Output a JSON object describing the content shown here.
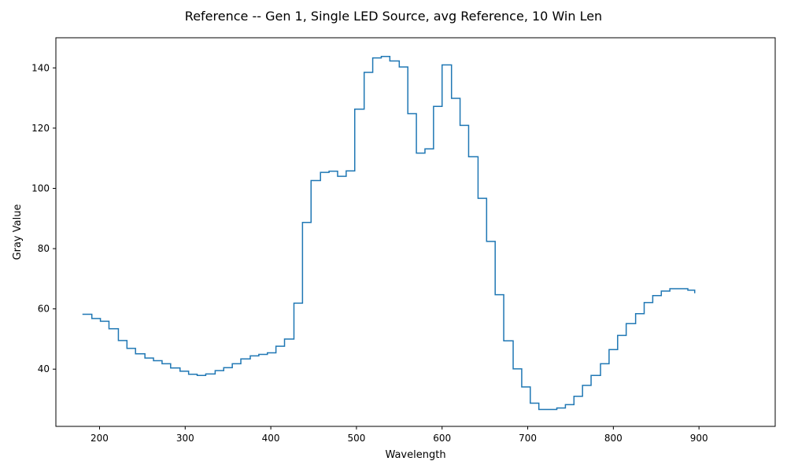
{
  "chart_data": {
    "type": "line",
    "step": "post",
    "title": "Reference -- Gen 1, Single LED Source, avg Reference, 10 Win Len",
    "xlabel": "Wavelength",
    "ylabel": "Gray Value",
    "xlim": [
      149,
      989
    ],
    "ylim": [
      21,
      150
    ],
    "xticks": [
      200,
      300,
      400,
      500,
      600,
      700,
      800,
      900
    ],
    "yticks": [
      40,
      60,
      80,
      100,
      120,
      140
    ],
    "grid": false,
    "color": "#1f77b4",
    "series": [
      {
        "x": [
          180,
          191,
          201,
          211,
          222,
          232,
          242,
          253,
          263,
          273,
          283,
          294,
          304,
          314,
          324,
          335,
          345,
          355,
          365,
          376,
          386,
          396,
          406,
          416,
          427,
          437,
          447,
          458,
          468,
          478,
          488,
          498,
          509,
          519,
          529,
          539,
          550,
          560,
          570,
          580,
          590,
          600,
          611,
          621,
          631,
          642,
          652,
          662,
          672,
          683,
          693,
          703,
          713,
          723,
          734,
          744,
          754,
          764,
          774,
          785,
          795,
          805,
          815,
          826,
          836,
          846,
          856,
          866,
          877,
          887,
          895
        ],
        "y": [
          58.2,
          56.8,
          55.9,
          53.4,
          49.5,
          46.9,
          45.1,
          43.7,
          42.8,
          41.8,
          40.4,
          39.3,
          38.3,
          37.9,
          38.4,
          39.5,
          40.5,
          41.8,
          43.4,
          44.4,
          44.9,
          45.4,
          47.6,
          50.0,
          61.9,
          88.7,
          102.6,
          105.3,
          105.7,
          104.0,
          105.8,
          126.3,
          138.5,
          143.3,
          143.8,
          142.3,
          140.3,
          124.8,
          111.7,
          113.1,
          127.2,
          141.0,
          129.9,
          120.9,
          110.5,
          96.7,
          82.4,
          64.7,
          49.4,
          40.1,
          34.1,
          28.7,
          26.6,
          26.6,
          27.1,
          28.2,
          31.0,
          34.6,
          37.9,
          41.8,
          46.5,
          51.2,
          55.1,
          58.4,
          62.1,
          64.4,
          65.9,
          66.7,
          66.7,
          66.2,
          65.2
        ]
      }
    ]
  }
}
